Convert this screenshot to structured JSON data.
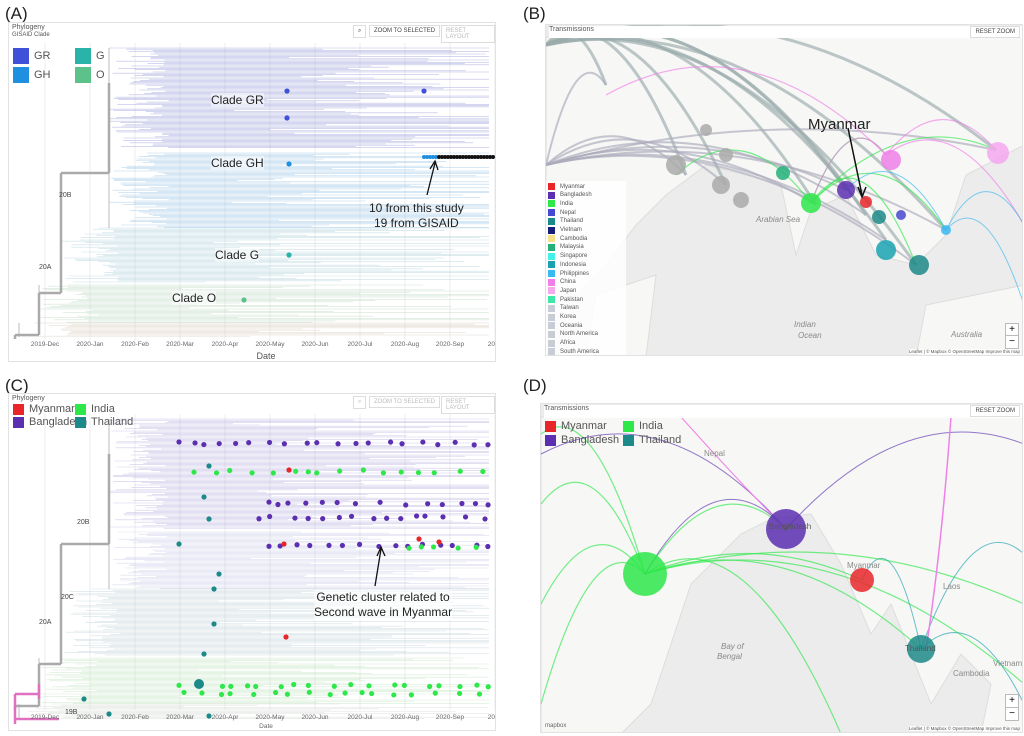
{
  "panels": {
    "a": {
      "label": "(A)",
      "title": "Phylogeny",
      "legend_title": "GISAID Clade",
      "zoom_selected": "ZOOM TO SELECTED",
      "reset_layout": "RESET LAYOUT",
      "legend": [
        {
          "name": "GR",
          "color": "#3f51d8"
        },
        {
          "name": "G",
          "color": "#2ab3a8"
        },
        {
          "name": "GH",
          "color": "#1f8fe0"
        },
        {
          "name": "O",
          "color": "#5cc28a"
        }
      ],
      "clades": [
        "Clade GR",
        "Clade GH",
        "Clade G",
        "Clade O"
      ],
      "nodes": [
        "20B",
        "20A"
      ],
      "annotation": [
        "10 from this study",
        "19 from GISAID"
      ],
      "x_ticks": [
        "2019-Dec",
        "2020-Jan",
        "2020-Feb",
        "2020-Mar",
        "2020-Apr",
        "2020-May",
        "2020-Jun",
        "2020-Jul",
        "2020-Aug",
        "2020-Sep",
        "2020"
      ],
      "x_label": "Date"
    },
    "b": {
      "label": "(B)",
      "title": "Transmissions",
      "reset_zoom": "RESET ZOOM",
      "callout": "Myanmar",
      "legend": [
        {
          "name": "Myanmar",
          "color": "#e8262a"
        },
        {
          "name": "Bangladesh",
          "color": "#5b2fb0"
        },
        {
          "name": "India",
          "color": "#2ee84a"
        },
        {
          "name": "Nepal",
          "color": "#4548d0"
        },
        {
          "name": "Thailand",
          "color": "#1c8a88"
        },
        {
          "name": "Vietnam",
          "color": "#171f7a"
        },
        {
          "name": "Cambodia",
          "color": "#f3e08a"
        },
        {
          "name": "Malaysia",
          "color": "#25b07a"
        },
        {
          "name": "Singapore",
          "color": "#45f0e8"
        },
        {
          "name": "Indonesia",
          "color": "#1aa2b0"
        },
        {
          "name": "Philippines",
          "color": "#3ab8f0"
        },
        {
          "name": "China",
          "color": "#f080e8"
        },
        {
          "name": "Japan",
          "color": "#f4a8ee"
        },
        {
          "name": "Pakistan",
          "color": "#3ee8a8"
        },
        {
          "name": "Taiwan",
          "color": "#c8ccd4"
        },
        {
          "name": "Korea",
          "color": "#c8ccd4"
        },
        {
          "name": "Oceania",
          "color": "#c8ccd4"
        },
        {
          "name": "North America",
          "color": "#c8ccd4"
        },
        {
          "name": "Africa",
          "color": "#c8ccd4"
        },
        {
          "name": "South America",
          "color": "#c8ccd4"
        }
      ],
      "map_labels": [
        "Indian",
        "Ocean",
        "Arabian Sea",
        "Australia"
      ],
      "attribution": "Leaflet | © Mapbox © OpenStreetMap Improve this map"
    },
    "c": {
      "label": "(C)",
      "title": "Phylogeny",
      "zoom_selected": "ZOOM TO SELECTED",
      "reset_layout": "RESET LAYOUT",
      "legend": [
        {
          "name": "Myanmar",
          "color": "#e8262a"
        },
        {
          "name": "India",
          "color": "#2ee84a"
        },
        {
          "name": "Bangladesh",
          "color": "#5b2fb0"
        },
        {
          "name": "Thailand",
          "color": "#1c8a88"
        }
      ],
      "nodes": [
        "20B",
        "20C",
        "20A",
        "19B"
      ],
      "annotation": [
        "Genetic cluster related to",
        "Second wave in Myanmar"
      ],
      "x_ticks": [
        "2019-Dec",
        "2020-Jan",
        "2020-Feb",
        "2020-Mar",
        "2020-Apr",
        "2020-May",
        "2020-Jun",
        "2020-Jul",
        "2020-Aug",
        "2020-Sep",
        "2020"
      ],
      "x_label": "Date"
    },
    "d": {
      "label": "(D)",
      "title": "Transmissions",
      "reset_zoom": "RESET ZOOM",
      "legend": [
        {
          "name": "Myanmar",
          "color": "#e8262a"
        },
        {
          "name": "India",
          "color": "#2ee84a"
        },
        {
          "name": "Bangladesh",
          "color": "#5b2fb0"
        },
        {
          "name": "Thailand",
          "color": "#1c8a88"
        }
      ],
      "map_labels": [
        "Nepal",
        "Myanmar",
        "Laos",
        "Bay of",
        "Bengal",
        "Cambodia",
        "Vietnam",
        "Bangladesh",
        "Thailand"
      ],
      "attribution": "Leaflet | © Mapbox © OpenStreetMap Improve this map",
      "logo": "mapbox"
    }
  },
  "zoom_in": "+",
  "zoom_out": "−"
}
